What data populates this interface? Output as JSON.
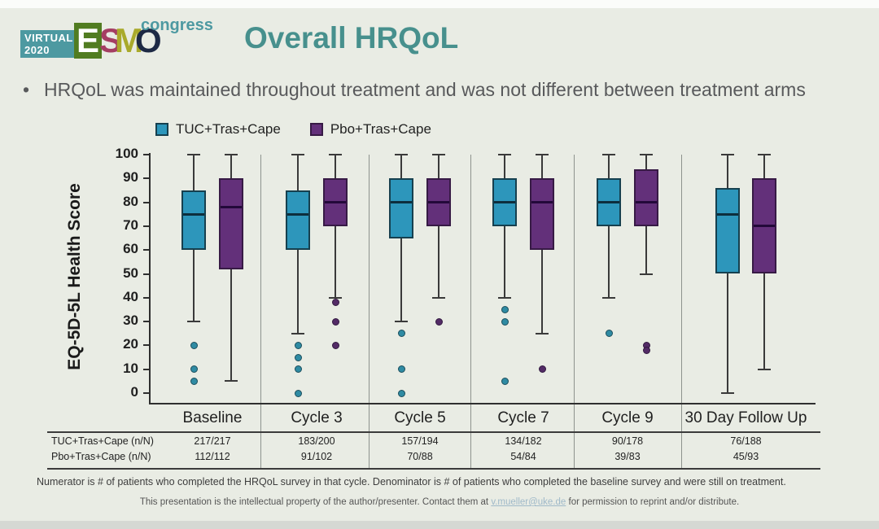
{
  "logo": {
    "virtual_line1": "VIRTUAL",
    "virtual_line2": "2020",
    "letters": [
      "E",
      "S",
      "M",
      "O"
    ],
    "congress": "congress",
    "teal": "#4d99a1"
  },
  "header": {
    "title": "Overall HRQoL",
    "title_color": "#47908d"
  },
  "bullet": {
    "marker": "•",
    "text": "HRQoL was maintained throughout treatment and was not different between treatment arms"
  },
  "legend": {
    "items": [
      {
        "label": "TUC+Tras+Cape"
      },
      {
        "label": "Pbo+Tras+Cape"
      }
    ]
  },
  "chart_data": {
    "type": "boxplot",
    "title": "Overall HRQoL",
    "ylabel": "EQ-5D-5L Health Score",
    "xlabel": "",
    "ylim": [
      0,
      100
    ],
    "ytick_step": 10,
    "grid": false,
    "legend_position": "top",
    "categories": [
      "Baseline",
      "Cycle 3",
      "Cycle 5",
      "Cycle 7",
      "Cycle 9",
      "30 Day Follow Up"
    ],
    "series": [
      {
        "name": "TUC+Tras+Cape",
        "color": {
          "fill": "#2d96bb",
          "stroke": "#16404f",
          "median": "#0d2e3d",
          "outlier_fill": "#2f8ba3",
          "outlier_stroke": "#1c4e5c"
        },
        "boxes": [
          {
            "low": 30,
            "q1": 60,
            "median": 75,
            "q3": 85,
            "high": 100,
            "outliers": [
              20,
              10,
              5
            ]
          },
          {
            "low": 25,
            "q1": 60,
            "median": 75,
            "q3": 85,
            "high": 100,
            "outliers": [
              20,
              15,
              10,
              0
            ]
          },
          {
            "low": 30,
            "q1": 65,
            "median": 80,
            "q3": 90,
            "high": 100,
            "outliers": [
              25,
              10,
              0
            ]
          },
          {
            "low": 40,
            "q1": 70,
            "median": 80,
            "q3": 90,
            "high": 100,
            "outliers": [
              35,
              30,
              5
            ]
          },
          {
            "low": 40,
            "q1": 70,
            "median": 80,
            "q3": 90,
            "high": 100,
            "outliers": [
              25
            ]
          },
          {
            "low": 0,
            "q1": 50,
            "median": 75,
            "q3": 86,
            "high": 100,
            "outliers": []
          }
        ]
      },
      {
        "name": "Pbo+Tras+Cape",
        "color": {
          "fill": "#63307a",
          "stroke": "#371a45",
          "median": "#23093a",
          "outlier_fill": "#532b66",
          "outlier_stroke": "#331a40"
        },
        "boxes": [
          {
            "low": 5,
            "q1": 52,
            "median": 78,
            "q3": 90,
            "high": 100,
            "outliers": []
          },
          {
            "low": 40,
            "q1": 70,
            "median": 80,
            "q3": 90,
            "high": 100,
            "outliers": [
              38,
              30,
              20
            ]
          },
          {
            "low": 40,
            "q1": 70,
            "median": 80,
            "q3": 90,
            "high": 100,
            "outliers": [
              30
            ]
          },
          {
            "low": 25,
            "q1": 60,
            "median": 80,
            "q3": 90,
            "high": 100,
            "outliers": [
              10
            ]
          },
          {
            "low": 50,
            "q1": 70,
            "median": 80,
            "q3": 94,
            "high": 100,
            "outliers": [
              20,
              18
            ]
          },
          {
            "low": 10,
            "q1": 50,
            "median": 70,
            "q3": 90,
            "high": 100,
            "outliers": []
          }
        ]
      }
    ]
  },
  "table": {
    "rows": [
      {
        "label": "TUC+Tras+Cape (n/N)",
        "values": [
          "217/217",
          "183/200",
          "157/194",
          "134/182",
          "90/178",
          "76/188"
        ]
      },
      {
        "label": "Pbo+Tras+Cape (n/N)",
        "values": [
          "112/112",
          "91/102",
          "70/88",
          "54/84",
          "39/83",
          "45/93"
        ]
      }
    ]
  },
  "footnotes": {
    "numerator_note": "Numerator is # of patients who completed the HRQoL survey in that cycle. Denominator is # of patients who completed the baseline survey and were still on treatment."
  },
  "footer": {
    "prefix": "This presentation is the intellectual property of the author/presenter. Contact them at ",
    "email": "v.mueller@uke.de",
    "suffix": " for permission to reprint and/or distribute.",
    "link_color": "#9fb9c9"
  }
}
